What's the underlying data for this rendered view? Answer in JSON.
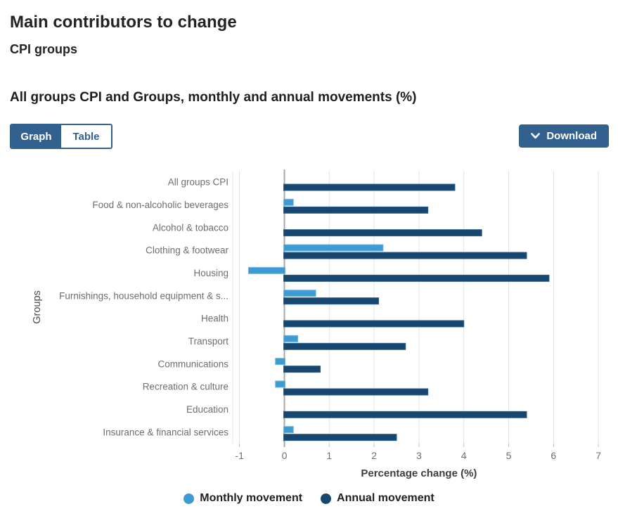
{
  "header": {
    "title": "Main contributors to change",
    "subtitle": "CPI groups",
    "chart_heading": "All groups CPI and Groups, monthly and annual movements (%)"
  },
  "toolbar": {
    "graph_label": "Graph",
    "table_label": "Table",
    "download_label": "Download"
  },
  "colors": {
    "monthly": "#3D9BD3",
    "monthly_stroke": "#6FB6DF",
    "annual": "#17466E",
    "annual_stroke": "#2A5E8F",
    "button_blue": "#33618F",
    "gridline": "#E3E3E3",
    "zero_line": "#A8A8A8",
    "tick": "#C2C2C2",
    "axis_edge": "#DFE6EC",
    "label_gray": "#6E6E6E",
    "axis_title": "#3D3D3D"
  },
  "chart_data": {
    "type": "bar",
    "orientation": "horizontal",
    "title": "All groups CPI and Groups, monthly and annual movements (%)",
    "xlabel": "Percentage change (%)",
    "ylabel": "Groups",
    "xlim": [
      -1,
      7
    ],
    "xticks": [
      -1,
      0,
      1,
      2,
      3,
      4,
      5,
      6,
      7
    ],
    "grid": true,
    "legend_position": "bottom",
    "categories": [
      "All groups CPI",
      "Food & non-alcoholic beverages",
      "Alcohol & tobacco",
      "Clothing & footwear",
      "Housing",
      "Furnishings, household equipment & s...",
      "Health",
      "Transport",
      "Communications",
      "Recreation & culture",
      "Education",
      "Insurance & financial services"
    ],
    "series": [
      {
        "name": "Monthly movement",
        "color": "#3D9BD3",
        "values": [
          0.0,
          0.2,
          0.0,
          2.2,
          -0.8,
          0.7,
          0.0,
          0.3,
          -0.2,
          -0.2,
          0.0,
          0.2
        ]
      },
      {
        "name": "Annual movement",
        "color": "#17466E",
        "values": [
          3.8,
          3.2,
          4.4,
          5.4,
          5.9,
          2.1,
          4.0,
          2.7,
          0.8,
          3.2,
          5.4,
          2.5
        ]
      }
    ]
  }
}
